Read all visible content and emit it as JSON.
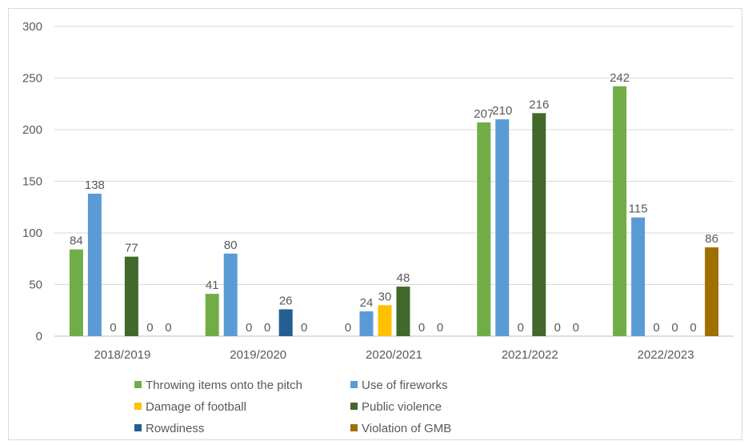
{
  "chart_data": {
    "type": "bar",
    "categories": [
      "2018/2019",
      "2019/2020",
      "2020/2021",
      "2021/2022",
      "2022/2023"
    ],
    "series": [
      {
        "name": "Throwing items onto the pitch",
        "color": "#70ad47",
        "values": [
          84,
          41,
          0,
          207,
          242
        ]
      },
      {
        "name": "Use of fireworks",
        "color": "#5b9bd5",
        "values": [
          138,
          80,
          24,
          210,
          115
        ]
      },
      {
        "name": "Damage of football",
        "color": "#ffc000",
        "values": [
          0,
          0,
          30,
          0,
          0
        ]
      },
      {
        "name": "Public violence",
        "color": "#43682b",
        "values": [
          77,
          0,
          48,
          216,
          0
        ]
      },
      {
        "name": "Rowdiness",
        "color": "#255e91",
        "values": [
          0,
          26,
          0,
          0,
          0
        ]
      },
      {
        "name": "Violation of GMB",
        "color": "#9e7000",
        "values": [
          0,
          0,
          0,
          0,
          86
        ]
      }
    ],
    "ylim": [
      0,
      300
    ],
    "yticks": [
      0,
      50,
      100,
      150,
      200,
      250,
      300
    ],
    "grid": true,
    "legend_position": "bottom",
    "title": "",
    "xlabel": "",
    "ylabel": ""
  }
}
